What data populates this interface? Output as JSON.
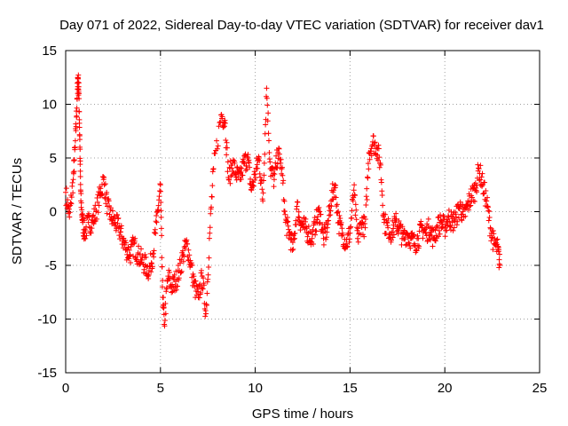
{
  "chart_data": {
    "type": "scatter",
    "title": "Day 071 of 2022, Sidereal Day-to-day VTEC variation (SDTVAR) for receiver dav1",
    "xlabel": "GPS time / hours",
    "ylabel": "SDTVAR / TECUs",
    "xlim": [
      0,
      25
    ],
    "ylim": [
      -15,
      15
    ],
    "xticks": [
      0,
      5,
      10,
      15,
      20,
      25
    ],
    "yticks": [
      -15,
      -10,
      -5,
      0,
      5,
      10,
      15
    ],
    "xtick_labels": [
      "0",
      "5",
      "10",
      "15",
      "20",
      "25"
    ],
    "ytick_labels": [
      "-15",
      "-10",
      "-5",
      "0",
      "5",
      "10",
      "15"
    ],
    "grid": true,
    "legend": "none",
    "marker": "+",
    "color": "#ff0000",
    "series": [
      {
        "name": "SDTVAR",
        "x": [
          0.0,
          0.2,
          0.4,
          0.5,
          0.6,
          0.65,
          0.7,
          0.75,
          0.8,
          0.9,
          1.0,
          1.2,
          1.4,
          1.6,
          1.8,
          2.0,
          2.2,
          2.4,
          2.6,
          2.8,
          3.0,
          3.2,
          3.4,
          3.6,
          3.8,
          4.0,
          4.2,
          4.4,
          4.6,
          4.8,
          5.0,
          5.1,
          5.2,
          5.4,
          5.6,
          5.8,
          6.0,
          6.2,
          6.4,
          6.6,
          6.8,
          7.0,
          7.2,
          7.4,
          7.6,
          7.8,
          8.2,
          8.4,
          8.6,
          8.8,
          9.0,
          9.2,
          9.4,
          9.6,
          9.8,
          10.0,
          10.2,
          10.4,
          10.6,
          10.8,
          11.0,
          11.2,
          11.4,
          11.6,
          11.8,
          12.0,
          12.2,
          12.4,
          12.6,
          12.8,
          13.0,
          13.2,
          13.4,
          13.6,
          13.8,
          14.0,
          14.2,
          14.4,
          14.6,
          14.8,
          15.0,
          15.2,
          15.4,
          15.6,
          15.8,
          16.0,
          16.2,
          16.4,
          16.6,
          16.8,
          17.0,
          17.2,
          17.4,
          17.6,
          17.8,
          18.0,
          18.2,
          18.4,
          18.6,
          18.8,
          19.0,
          19.2,
          19.4,
          19.6,
          19.8,
          20.0,
          20.2,
          20.4,
          20.6,
          20.8,
          21.0,
          21.2,
          21.4,
          21.6,
          21.8,
          22.0,
          22.2,
          22.4,
          22.6,
          22.8,
          22.9
        ],
        "y": [
          1.8,
          -0.5,
          3.0,
          6.0,
          10.5,
          12.5,
          11.0,
          6.0,
          1.0,
          -1.0,
          -2.0,
          -1.0,
          -1.0,
          0.0,
          1.5,
          3.0,
          0.5,
          -0.5,
          -1.0,
          -1.5,
          -2.5,
          -3.5,
          -4.0,
          -3.0,
          -4.0,
          -4.5,
          -5.0,
          -5.5,
          -4.0,
          -1.0,
          2.5,
          -7.0,
          -10.5,
          -6.0,
          -7.0,
          -6.5,
          -5.5,
          -4.0,
          -3.0,
          -5.0,
          -7.0,
          -8.0,
          -6.0,
          -9.5,
          -2.0,
          4.0,
          9.0,
          8.5,
          3.0,
          4.5,
          3.5,
          3.0,
          4.5,
          5.0,
          2.0,
          3.5,
          5.0,
          1.0,
          11.5,
          4.0,
          3.0,
          5.5,
          4.0,
          -1.0,
          -2.0,
          -3.5,
          0.5,
          -1.0,
          -1.5,
          -2.0,
          -2.5,
          -1.0,
          0.0,
          -2.5,
          -1.5,
          1.0,
          2.5,
          -1.0,
          -2.0,
          -3.0,
          -2.0,
          2.0,
          -2.5,
          -1.0,
          -1.5,
          5.5,
          6.5,
          6.0,
          4.5,
          -1.0,
          -1.5,
          -2.0,
          -1.0,
          -1.5,
          -2.5,
          -2.0,
          -2.5,
          -3.0,
          -2.5,
          -1.5,
          -2.0,
          -1.5,
          -2.5,
          -1.5,
          -1.0,
          -1.5,
          -0.5,
          -1.0,
          -0.5,
          0.5,
          -0.5,
          0.5,
          1.5,
          2.0,
          4.0,
          2.5,
          1.0,
          -1.5,
          -3.0,
          -3.5,
          -5.0
        ]
      }
    ]
  }
}
